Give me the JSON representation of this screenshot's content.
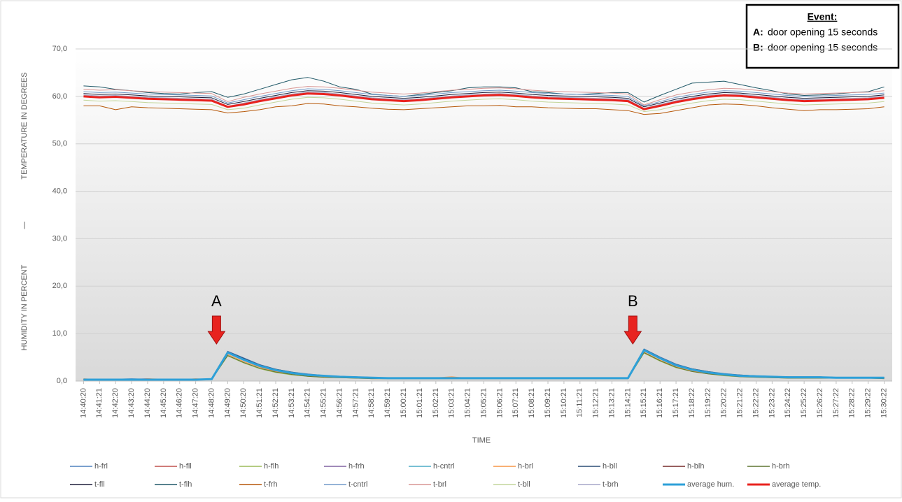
{
  "chart_data": {
    "type": "line",
    "y_title_top": "TEMPERATURE IN DEGREES",
    "y_title_sep": "|",
    "y_title_bottom": "HUMIDITY IN PERCENT",
    "x_title": "TIME",
    "annotations": [
      "A",
      "B"
    ],
    "categories": [
      "14:40:20",
      "14:41:21",
      "14:42:20",
      "14:43:20",
      "14:44:20",
      "14:45:20",
      "14:46:20",
      "14:47:20",
      "14:48:20",
      "14:49:20",
      "14:50:20",
      "14:51:21",
      "14:52:21",
      "14:53:21",
      "14:54:21",
      "14:55:21",
      "14:56:21",
      "14:57:21",
      "14:58:21",
      "14:59:21",
      "15:00:21",
      "15:01:21",
      "15:02:21",
      "15:03:21",
      "15:04:21",
      "15:05:21",
      "15:06:21",
      "15:07:21",
      "15:08:21",
      "15:09:21",
      "15:10:21",
      "15:11:21",
      "15:12:21",
      "15:13:21",
      "15:14:21",
      "15:15:21",
      "15:16:21",
      "15:17:21",
      "15:18:22",
      "15:19:22",
      "15:20:22",
      "15:21:22",
      "15:22:22",
      "15:23:22",
      "15:24:22",
      "15:25:22",
      "15:26:22",
      "15:27:22",
      "15:28:22",
      "15:29:22",
      "15:30:22"
    ],
    "ylim": [
      0,
      70
    ],
    "yticks": [
      {
        "value": 0,
        "label": "0,0"
      },
      {
        "value": 10,
        "label": "10,0"
      },
      {
        "value": 20,
        "label": "20,0"
      },
      {
        "value": 30,
        "label": "30,0"
      },
      {
        "value": 40,
        "label": "40,0"
      },
      {
        "value": 50,
        "label": "50,0"
      },
      {
        "value": 60,
        "label": "60,0"
      },
      {
        "value": 70,
        "label": "70,0"
      }
    ],
    "grid": true,
    "series": [
      {
        "name": "h-frl",
        "color": "#4f81bd",
        "values": [
          0.4,
          0.3,
          0.4,
          0.5,
          0.4,
          0.3,
          0.4,
          0.3,
          0.5,
          6.3,
          4.9,
          3.5,
          2.5,
          1.9,
          1.5,
          1.2,
          1.0,
          0.9,
          0.8,
          0.7,
          0.7,
          0.7,
          0.7,
          0.7,
          0.7,
          0.7,
          0.7,
          0.7,
          0.7,
          0.7,
          0.7,
          0.7,
          0.7,
          0.7,
          0.7,
          6.8,
          5.1,
          3.6,
          2.6,
          2.0,
          1.6,
          1.3,
          1.1,
          1.0,
          0.9,
          0.9,
          0.9,
          0.8,
          0.8,
          0.8,
          0.8
        ]
      },
      {
        "name": "h-fll",
        "color": "#c0504d",
        "values": [
          0.3,
          0.3,
          0.3,
          0.3,
          0.3,
          0.4,
          0.3,
          0.3,
          0.4,
          6.0,
          4.5,
          3.2,
          2.3,
          1.7,
          1.3,
          1.1,
          0.9,
          0.8,
          0.7,
          0.6,
          0.6,
          0.6,
          0.6,
          0.6,
          0.6,
          0.6,
          0.6,
          0.6,
          0.6,
          0.6,
          0.6,
          0.6,
          0.6,
          0.6,
          0.6,
          6.5,
          4.8,
          3.3,
          2.4,
          1.8,
          1.4,
          1.1,
          1.0,
          0.9,
          0.8,
          0.8,
          0.8,
          0.7,
          0.7,
          0.7,
          0.7
        ]
      },
      {
        "name": "h-flh",
        "color": "#9bbb59",
        "values": [
          0.2,
          0.2,
          0.2,
          0.3,
          0.2,
          0.2,
          0.2,
          0.2,
          0.3,
          5.3,
          3.8,
          2.6,
          1.8,
          1.3,
          1.0,
          0.8,
          0.7,
          0.6,
          0.5,
          0.5,
          0.5,
          0.5,
          0.5,
          0.5,
          0.5,
          0.5,
          0.5,
          0.5,
          0.5,
          0.5,
          0.5,
          0.5,
          0.5,
          0.5,
          0.5,
          5.9,
          4.2,
          2.8,
          2.0,
          1.5,
          1.1,
          0.9,
          0.8,
          0.7,
          0.6,
          0.6,
          0.6,
          0.6,
          0.6,
          0.6,
          0.5
        ]
      },
      {
        "name": "h-frh",
        "color": "#8064a2",
        "values": [
          0.3,
          0.4,
          0.3,
          0.4,
          0.5,
          0.3,
          0.3,
          0.4,
          0.4,
          6.2,
          4.7,
          3.4,
          2.4,
          1.8,
          1.4,
          1.1,
          1.0,
          0.8,
          0.7,
          0.7,
          0.6,
          0.6,
          0.6,
          0.6,
          0.6,
          0.6,
          0.6,
          0.6,
          0.6,
          0.6,
          0.6,
          0.6,
          0.6,
          0.6,
          0.6,
          6.6,
          5.0,
          3.5,
          2.5,
          1.9,
          1.5,
          1.2,
          1.0,
          0.9,
          0.9,
          0.8,
          0.8,
          0.8,
          0.7,
          0.7,
          0.7
        ]
      },
      {
        "name": "h-cntrl",
        "color": "#4bacc6",
        "values": [
          0.3,
          0.3,
          0.3,
          0.3,
          0.3,
          0.3,
          0.3,
          0.3,
          0.4,
          6.0,
          4.5,
          3.2,
          2.3,
          1.7,
          1.3,
          1.1,
          0.9,
          0.8,
          0.7,
          0.6,
          0.6,
          0.6,
          0.6,
          0.6,
          0.6,
          0.6,
          0.6,
          0.6,
          0.6,
          0.6,
          0.6,
          0.6,
          0.6,
          0.6,
          0.6,
          6.5,
          4.8,
          3.3,
          2.4,
          1.8,
          1.4,
          1.1,
          1.0,
          0.9,
          0.8,
          0.8,
          0.8,
          0.7,
          0.7,
          0.7,
          0.7
        ]
      },
      {
        "name": "h-brl",
        "color": "#f79646",
        "values": [
          0.5,
          0.3,
          0.4,
          0.3,
          0.5,
          0.4,
          0.3,
          0.5,
          0.3,
          5.6,
          4.1,
          2.9,
          2.0,
          1.5,
          1.1,
          0.9,
          0.8,
          0.7,
          0.6,
          0.6,
          0.5,
          0.6,
          0.7,
          0.9,
          0.6,
          0.5,
          0.6,
          0.6,
          0.5,
          0.6,
          0.5,
          0.6,
          0.5,
          0.6,
          0.5,
          6.1,
          4.4,
          3.0,
          2.1,
          1.6,
          1.2,
          1.0,
          1.0,
          0.8,
          0.7,
          0.9,
          0.7,
          0.6,
          0.7,
          0.6,
          0.6
        ]
      },
      {
        "name": "h-bll",
        "color": "#2c4d75",
        "values": [
          0.4,
          0.3,
          0.4,
          0.4,
          0.4,
          0.3,
          0.4,
          0.3,
          0.5,
          6.2,
          4.8,
          3.4,
          2.5,
          1.9,
          1.4,
          1.2,
          1.0,
          0.9,
          0.8,
          0.7,
          0.7,
          0.7,
          0.7,
          0.7,
          0.7,
          0.7,
          0.7,
          0.7,
          0.7,
          0.7,
          0.7,
          0.7,
          0.7,
          0.7,
          0.7,
          6.7,
          5.0,
          3.5,
          2.6,
          2.0,
          1.5,
          1.3,
          1.1,
          1.0,
          0.9,
          0.9,
          0.9,
          0.8,
          0.8,
          0.8,
          0.8
        ]
      },
      {
        "name": "h-blh",
        "color": "#772c2a",
        "values": [
          0.3,
          0.3,
          0.3,
          0.3,
          0.3,
          0.3,
          0.3,
          0.3,
          0.4,
          5.9,
          4.4,
          3.1,
          2.2,
          1.7,
          1.3,
          1.0,
          0.9,
          0.8,
          0.7,
          0.6,
          0.6,
          0.6,
          0.6,
          0.6,
          0.6,
          0.6,
          0.6,
          0.6,
          0.6,
          0.6,
          0.6,
          0.6,
          0.6,
          0.6,
          0.6,
          6.4,
          4.7,
          3.2,
          2.4,
          1.8,
          1.4,
          1.1,
          1.0,
          0.9,
          0.8,
          0.8,
          0.7,
          0.7,
          0.7,
          0.7,
          0.7
        ]
      },
      {
        "name": "h-brh",
        "color": "#5f7530",
        "values": [
          0.2,
          0.2,
          0.2,
          0.2,
          0.2,
          0.2,
          0.2,
          0.2,
          0.3,
          5.4,
          3.9,
          2.7,
          1.9,
          1.4,
          1.0,
          0.8,
          0.7,
          0.6,
          0.5,
          0.5,
          0.5,
          0.5,
          0.5,
          0.5,
          0.5,
          0.5,
          0.5,
          0.5,
          0.5,
          0.5,
          0.5,
          0.5,
          0.5,
          0.5,
          0.5,
          6.0,
          4.3,
          2.9,
          2.0,
          1.5,
          1.2,
          0.9,
          0.8,
          0.7,
          0.6,
          0.6,
          0.6,
          0.6,
          0.6,
          0.6,
          0.5
        ]
      },
      {
        "name": "t-fll",
        "color": "#1f1f3a",
        "values": [
          60.6,
          60.4,
          60.5,
          60.3,
          60.1,
          60.0,
          59.9,
          59.8,
          59.7,
          58.3,
          58.9,
          59.6,
          60.2,
          60.8,
          61.2,
          61.1,
          60.8,
          60.4,
          60.0,
          59.8,
          59.6,
          59.8,
          60.1,
          60.4,
          60.6,
          60.8,
          60.9,
          60.7,
          60.4,
          60.2,
          60.1,
          60.0,
          59.9,
          59.8,
          59.6,
          57.8,
          58.6,
          59.4,
          60.0,
          60.5,
          60.8,
          60.7,
          60.4,
          60.1,
          59.8,
          59.6,
          59.7,
          59.8,
          59.9,
          60.0,
          60.3
        ]
      },
      {
        "name": "t-flh",
        "color": "#215968",
        "values": [
          62.2,
          62.0,
          61.5,
          61.2,
          60.8,
          60.6,
          60.5,
          60.8,
          61.0,
          59.8,
          60.5,
          61.5,
          62.5,
          63.5,
          64.0,
          63.2,
          62.0,
          61.5,
          60.5,
          60.2,
          60.0,
          60.4,
          60.8,
          61.2,
          61.8,
          62.0,
          62.0,
          61.8,
          61.0,
          60.8,
          60.5,
          60.4,
          60.6,
          60.8,
          60.8,
          58.8,
          60.2,
          61.5,
          62.8,
          63.0,
          63.2,
          62.5,
          61.8,
          61.2,
          60.5,
          60.2,
          60.3,
          60.5,
          60.8,
          61.0,
          62.0
        ]
      },
      {
        "name": "t-frh",
        "color": "#b65708",
        "values": [
          58.0,
          58.0,
          57.2,
          57.8,
          57.6,
          57.5,
          57.4,
          57.3,
          57.2,
          56.5,
          56.8,
          57.2,
          57.8,
          58.0,
          58.5,
          58.4,
          58.0,
          57.8,
          57.5,
          57.3,
          57.2,
          57.4,
          57.6,
          57.8,
          58.0,
          58.0,
          58.1,
          57.8,
          57.8,
          57.6,
          57.5,
          57.4,
          57.4,
          57.2,
          57.0,
          56.2,
          56.4,
          57.0,
          57.6,
          58.2,
          58.4,
          58.3,
          58.0,
          57.6,
          57.3,
          57.0,
          57.2,
          57.2,
          57.3,
          57.4,
          57.8
        ]
      },
      {
        "name": "t-cntrl",
        "color": "#729aca",
        "values": [
          61.0,
          60.8,
          60.9,
          60.7,
          60.5,
          60.4,
          60.3,
          60.2,
          60.1,
          58.6,
          59.3,
          60.0,
          60.6,
          61.2,
          61.6,
          61.5,
          61.2,
          60.8,
          60.4,
          60.2,
          60.0,
          60.2,
          60.5,
          60.8,
          61.0,
          61.2,
          61.3,
          61.1,
          60.8,
          60.6,
          60.5,
          60.4,
          60.3,
          60.2,
          60.0,
          58.0,
          58.9,
          59.8,
          60.4,
          60.9,
          61.2,
          61.1,
          60.8,
          60.5,
          60.2,
          60.0,
          60.1,
          60.2,
          60.3,
          60.4,
          60.7
        ]
      },
      {
        "name": "t-brl",
        "color": "#d99694",
        "values": [
          61.5,
          61.3,
          61.4,
          61.2,
          61.0,
          60.9,
          60.8,
          60.7,
          60.6,
          58.9,
          59.8,
          60.5,
          61.1,
          61.7,
          62.1,
          62.0,
          61.7,
          61.3,
          60.9,
          60.7,
          60.5,
          60.7,
          61.0,
          61.3,
          61.5,
          61.7,
          61.8,
          61.6,
          61.3,
          61.1,
          61.0,
          60.9,
          60.8,
          60.7,
          60.5,
          58.2,
          59.3,
          60.3,
          60.9,
          61.4,
          61.7,
          61.6,
          61.3,
          61.0,
          60.7,
          60.5,
          60.6,
          60.7,
          60.8,
          60.9,
          61.2
        ]
      },
      {
        "name": "t-bll",
        "color": "#c3d69b",
        "values": [
          59.2,
          59.0,
          59.1,
          58.9,
          58.7,
          58.6,
          58.5,
          58.4,
          58.3,
          57.2,
          57.5,
          58.2,
          58.8,
          59.4,
          59.8,
          59.7,
          59.4,
          59.0,
          58.6,
          58.4,
          58.2,
          58.4,
          58.7,
          59.0,
          59.2,
          59.4,
          59.5,
          59.3,
          59.0,
          58.8,
          58.7,
          58.6,
          58.5,
          58.4,
          58.2,
          56.8,
          57.2,
          58.0,
          58.6,
          59.1,
          59.4,
          59.3,
          59.0,
          58.7,
          58.4,
          58.2,
          58.3,
          58.4,
          58.5,
          58.6,
          58.9
        ]
      },
      {
        "name": "t-brh",
        "color": "#a5a5c8",
        "values": [
          60.3,
          60.1,
          60.2,
          60.0,
          59.8,
          59.7,
          59.6,
          59.5,
          59.4,
          57.9,
          58.6,
          59.3,
          59.9,
          60.5,
          60.9,
          60.8,
          60.5,
          60.1,
          59.7,
          59.5,
          59.3,
          59.5,
          59.8,
          60.1,
          60.3,
          60.5,
          60.6,
          60.4,
          60.1,
          59.9,
          59.8,
          59.7,
          59.6,
          59.5,
          59.3,
          57.5,
          58.3,
          59.1,
          59.7,
          60.2,
          60.5,
          60.4,
          60.1,
          59.8,
          59.5,
          59.3,
          59.4,
          59.5,
          59.6,
          59.7,
          60.0
        ]
      },
      {
        "name": "average hum.",
        "color": "#2ea0d8",
        "values": [
          0.3,
          0.3,
          0.3,
          0.3,
          0.3,
          0.3,
          0.3,
          0.3,
          0.4,
          6.0,
          4.5,
          3.2,
          2.3,
          1.7,
          1.3,
          1.1,
          0.9,
          0.8,
          0.7,
          0.6,
          0.6,
          0.6,
          0.6,
          0.6,
          0.6,
          0.6,
          0.6,
          0.6,
          0.6,
          0.6,
          0.6,
          0.6,
          0.6,
          0.6,
          0.6,
          6.5,
          4.8,
          3.3,
          2.4,
          1.8,
          1.4,
          1.1,
          1.0,
          0.9,
          0.8,
          0.8,
          0.8,
          0.7,
          0.7,
          0.7,
          0.7
        ]
      },
      {
        "name": "average temp.",
        "color": "#e8231f",
        "values": [
          60.0,
          59.8,
          59.9,
          59.7,
          59.5,
          59.4,
          59.3,
          59.2,
          59.1,
          57.8,
          58.3,
          59.0,
          59.6,
          60.2,
          60.6,
          60.5,
          60.2,
          59.8,
          59.4,
          59.2,
          59.0,
          59.2,
          59.5,
          59.8,
          60.0,
          60.2,
          60.3,
          60.1,
          59.8,
          59.6,
          59.5,
          59.4,
          59.3,
          59.2,
          59.0,
          57.3,
          58.0,
          58.8,
          59.4,
          59.9,
          60.2,
          60.1,
          59.8,
          59.5,
          59.2,
          59.0,
          59.1,
          59.2,
          59.3,
          59.4,
          59.7
        ]
      }
    ]
  },
  "event": {
    "title": "Event:",
    "items": [
      {
        "key": "A:",
        "text": "door opening 15 seconds"
      },
      {
        "key": "B:",
        "text": "door opening 15 seconds"
      }
    ]
  }
}
